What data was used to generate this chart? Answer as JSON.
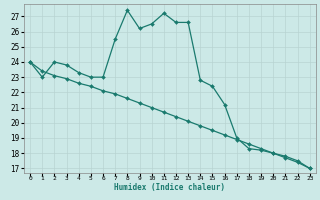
{
  "xlabel": "Humidex (Indice chaleur)",
  "xlim": [
    -0.5,
    23.5
  ],
  "ylim": [
    16.7,
    27.8
  ],
  "yticks": [
    17,
    18,
    19,
    20,
    21,
    22,
    23,
    24,
    25,
    26,
    27
  ],
  "xticks": [
    0,
    1,
    2,
    3,
    4,
    5,
    6,
    7,
    8,
    9,
    10,
    11,
    12,
    13,
    14,
    15,
    16,
    17,
    18,
    19,
    20,
    21,
    22,
    23
  ],
  "line1_x": [
    0,
    1,
    2,
    3,
    4,
    5,
    6,
    7,
    8,
    9,
    10,
    11,
    12,
    13,
    14,
    15,
    16,
    17,
    18,
    19,
    20,
    21,
    22,
    23
  ],
  "line1_y": [
    24.0,
    23.0,
    24.0,
    23.8,
    23.3,
    23.0,
    23.0,
    25.5,
    27.4,
    26.2,
    26.5,
    27.2,
    26.6,
    26.6,
    22.8,
    22.4,
    21.2,
    19.0,
    18.3,
    18.2,
    18.0,
    17.8,
    17.5,
    17.0
  ],
  "line2_x": [
    0,
    1,
    2,
    3,
    4,
    5,
    6,
    7,
    8,
    9,
    10,
    11,
    12,
    13,
    14,
    15,
    16,
    17,
    18,
    19,
    20,
    21,
    22,
    23
  ],
  "line2_y": [
    24.0,
    23.4,
    23.1,
    22.9,
    22.6,
    22.4,
    22.1,
    21.9,
    21.6,
    21.3,
    21.0,
    20.7,
    20.4,
    20.1,
    19.8,
    19.5,
    19.2,
    18.9,
    18.6,
    18.3,
    18.0,
    17.7,
    17.4,
    17.0
  ],
  "line_color": "#1a7a6e",
  "bg_color": "#cce9e7",
  "grid_color": "#b8d4d2",
  "marker_size": 2.0,
  "linewidth": 0.9
}
